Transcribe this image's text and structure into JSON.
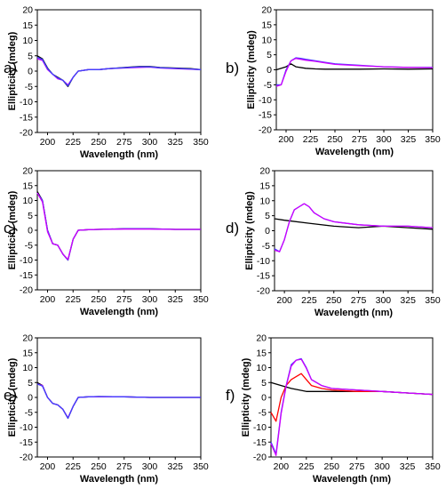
{
  "chart_data": [
    {
      "panel_label": "a)",
      "type": "line",
      "xlabel": "Wavelength (nm)",
      "ylabel": "Ellipticity (mdeg)",
      "xlim": [
        190,
        350
      ],
      "ylim": [
        -20,
        20
      ],
      "xticks": [
        200,
        225,
        250,
        275,
        300,
        325,
        350
      ],
      "yticks": [
        -20,
        -15,
        -10,
        -5,
        0,
        5,
        10,
        15,
        20
      ],
      "grid": false,
      "legend": "none",
      "series": [
        {
          "color": "#000000",
          "x": [
            190,
            195,
            200,
            205,
            210,
            215,
            220,
            225,
            230,
            240,
            250,
            260,
            275,
            290,
            300,
            310,
            325,
            340,
            350
          ],
          "y": [
            5,
            4,
            1,
            -1,
            -2,
            -3,
            -5,
            -2,
            0,
            0.5,
            0.5,
            0.8,
            1.2,
            1.5,
            1.5,
            1.2,
            1,
            0.8,
            0.5
          ]
        },
        {
          "color": "#cc00ff",
          "x": [
            190,
            195,
            200,
            205,
            210,
            215,
            220,
            225,
            230,
            240,
            250,
            260,
            275,
            290,
            300,
            310,
            325,
            340,
            350
          ],
          "y": [
            4,
            3.5,
            0.5,
            -1,
            -2.5,
            -3,
            -4.5,
            -2,
            0,
            0.5,
            0.5,
            0.8,
            1,
            1.2,
            1.3,
            1,
            0.8,
            0.6,
            0.5
          ]
        },
        {
          "color": "#4040ff",
          "x": [
            190,
            195,
            200,
            205,
            210,
            215,
            220,
            225,
            230,
            240,
            250,
            260,
            275,
            290,
            300,
            310,
            325,
            340,
            350
          ],
          "y": [
            4.5,
            3.8,
            0.8,
            -1,
            -2.2,
            -3,
            -4.8,
            -2,
            0,
            0.5,
            0.5,
            0.8,
            1.1,
            1.4,
            1.4,
            1.1,
            0.9,
            0.7,
            0.5
          ]
        }
      ]
    },
    {
      "panel_label": "b)",
      "type": "line",
      "xlabel": "Wavelength (nm)",
      "ylabel": "Ellipticity (mdeg)",
      "xlim": [
        190,
        350
      ],
      "ylim": [
        -20,
        20
      ],
      "xticks": [
        200,
        225,
        250,
        275,
        300,
        325,
        350
      ],
      "yticks": [
        -20,
        -15,
        -10,
        -5,
        0,
        5,
        10,
        15,
        20
      ],
      "grid": false,
      "legend": "none",
      "series": [
        {
          "color": "#000000",
          "x": [
            190,
            200,
            205,
            210,
            220,
            230,
            240,
            250,
            275,
            300,
            325,
            350
          ],
          "y": [
            0,
            1,
            2,
            1,
            0.5,
            0.3,
            0.2,
            0.2,
            0.2,
            0.3,
            0.2,
            0.3
          ]
        },
        {
          "color": "#4040ff",
          "x": [
            190,
            195,
            200,
            205,
            210,
            215,
            220,
            230,
            240,
            250,
            275,
            300,
            325,
            350
          ],
          "y": [
            -5,
            -5,
            0,
            3,
            4,
            3.8,
            3.5,
            3,
            2.5,
            2,
            1.5,
            1,
            0.8,
            0.8
          ]
        },
        {
          "color": "#cc00ff",
          "x": [
            190,
            195,
            200,
            205,
            210,
            215,
            220,
            230,
            240,
            250,
            275,
            300,
            325,
            350
          ],
          "y": [
            -5.5,
            -5,
            -0.5,
            3,
            3.8,
            3.5,
            3.2,
            2.8,
            2.3,
            1.8,
            1.4,
            1,
            0.8,
            0.7
          ]
        }
      ]
    },
    {
      "panel_label": "c)",
      "type": "line",
      "xlabel": "Wavelength (nm)",
      "ylabel": "Ellipticity (mdeg)",
      "xlim": [
        190,
        350
      ],
      "ylim": [
        -20,
        20
      ],
      "xticks": [
        200,
        225,
        250,
        275,
        300,
        325,
        350
      ],
      "yticks": [
        -20,
        -15,
        -10,
        -5,
        0,
        5,
        10,
        15,
        20
      ],
      "grid": false,
      "legend": "none",
      "series": [
        {
          "color": "#000000",
          "x": [
            190,
            195,
            200,
            205,
            210,
            215,
            220,
            225,
            230,
            240,
            250,
            275,
            300,
            325,
            350
          ],
          "y": [
            13,
            10,
            0,
            -4.5,
            -5,
            -8,
            -10,
            -3,
            0,
            0.2,
            0.3,
            0.5,
            0.5,
            0.3,
            0.3
          ]
        },
        {
          "color": "#4040ff",
          "x": [
            190,
            195,
            200,
            205,
            210,
            215,
            220,
            225,
            230,
            240,
            250,
            275,
            300,
            325,
            350
          ],
          "y": [
            12.5,
            10,
            0,
            -4.5,
            -5,
            -8,
            -10,
            -3,
            0,
            0.2,
            0.3,
            0.5,
            0.5,
            0.3,
            0.3
          ]
        },
        {
          "color": "#cc00ff",
          "x": [
            190,
            195,
            200,
            205,
            210,
            215,
            220,
            225,
            230,
            240,
            250,
            275,
            300,
            325,
            350
          ],
          "y": [
            12.5,
            9.5,
            -0.5,
            -4.5,
            -5,
            -8,
            -9.8,
            -3,
            0,
            0.2,
            0.3,
            0.4,
            0.4,
            0.3,
            0.3
          ]
        }
      ]
    },
    {
      "panel_label": "d)",
      "type": "line",
      "xlabel": "Wavelength (nm)",
      "ylabel": "Ellipticity (mdeg)",
      "xlim": [
        190,
        350
      ],
      "ylim": [
        -20,
        20
      ],
      "xticks": [
        200,
        225,
        250,
        275,
        300,
        325,
        350
      ],
      "yticks": [
        -20,
        -15,
        -10,
        -5,
        0,
        5,
        10,
        15,
        20
      ],
      "grid": false,
      "legend": "none",
      "series": [
        {
          "color": "#000000",
          "x": [
            190,
            200,
            225,
            250,
            275,
            300,
            325,
            350
          ],
          "y": [
            4,
            3.5,
            2.5,
            1.5,
            1,
            1.5,
            1,
            0.5
          ]
        },
        {
          "color": "#4040ff",
          "x": [
            190,
            195,
            200,
            205,
            210,
            215,
            220,
            225,
            230,
            240,
            250,
            275,
            300,
            325,
            350
          ],
          "y": [
            -6,
            -7,
            -3,
            3,
            7,
            8,
            9,
            8,
            6,
            4,
            3,
            2,
            1.5,
            1.5,
            1
          ]
        },
        {
          "color": "#cc00ff",
          "x": [
            190,
            195,
            200,
            205,
            210,
            215,
            220,
            225,
            230,
            240,
            250,
            275,
            300,
            325,
            350
          ],
          "y": [
            -6.5,
            -7,
            -3,
            3,
            7,
            8,
            9,
            8,
            6,
            4,
            3,
            2,
            1.5,
            1.5,
            1
          ]
        }
      ]
    },
    {
      "panel_label": "e)",
      "type": "line",
      "xlabel": "Wavelength (nm)",
      "ylabel": "Ellipticity (mdeg)",
      "xlim": [
        190,
        350
      ],
      "ylim": [
        -20,
        20
      ],
      "xticks": [
        200,
        225,
        250,
        275,
        300,
        325,
        350
      ],
      "yticks": [
        -20,
        -15,
        -10,
        -5,
        0,
        5,
        10,
        15,
        20
      ],
      "grid": false,
      "legend": "none",
      "series": [
        {
          "color": "#000000",
          "x": [
            190,
            195,
            200,
            205,
            210,
            215,
            220,
            225,
            230,
            240,
            250,
            275,
            300,
            325,
            350
          ],
          "y": [
            5,
            4,
            0,
            -2,
            -2.5,
            -4,
            -7,
            -3,
            0,
            0.2,
            0.3,
            0.2,
            0,
            0,
            0
          ]
        },
        {
          "color": "#cc00ff",
          "x": [
            190,
            195,
            200,
            205,
            210,
            215,
            220,
            225,
            230,
            240,
            250,
            275,
            300,
            325,
            350
          ],
          "y": [
            4.5,
            4,
            0,
            -2,
            -2.5,
            -4,
            -6.8,
            -3,
            0,
            0.2,
            0.2,
            0.2,
            0,
            0,
            0
          ]
        },
        {
          "color": "#4040ff",
          "x": [
            190,
            195,
            200,
            205,
            210,
            215,
            220,
            225,
            230,
            240,
            250,
            275,
            300,
            325,
            350
          ],
          "y": [
            4.5,
            3.8,
            0,
            -2,
            -2.5,
            -4,
            -7,
            -3,
            0,
            0.2,
            0.3,
            0.2,
            0,
            0,
            0
          ]
        }
      ]
    },
    {
      "panel_label": "f)",
      "type": "line",
      "xlabel": "Wavelength (nm)",
      "ylabel": "Ellipticity (mdeg)",
      "xlim": [
        190,
        350
      ],
      "ylim": [
        -20,
        20
      ],
      "xticks": [
        200,
        225,
        250,
        275,
        300,
        325,
        350
      ],
      "yticks": [
        -20,
        -15,
        -10,
        -5,
        0,
        5,
        10,
        15,
        20
      ],
      "grid": false,
      "legend": "none",
      "series": [
        {
          "color": "#000000",
          "x": [
            190,
            200,
            210,
            225,
            250,
            275,
            300,
            325,
            350
          ],
          "y": [
            5,
            4,
            3,
            2,
            2,
            2,
            2,
            1.5,
            1
          ]
        },
        {
          "color": "#ff0000",
          "x": [
            190,
            195,
            200,
            205,
            210,
            215,
            220,
            225,
            230,
            240,
            250,
            275,
            300,
            325,
            350
          ],
          "y": [
            -5,
            -8,
            0,
            4,
            6,
            7,
            8,
            6,
            4,
            3,
            2.5,
            2,
            2,
            1.5,
            1
          ]
        },
        {
          "color": "#4040ff",
          "x": [
            190,
            195,
            200,
            205,
            210,
            215,
            220,
            225,
            230,
            240,
            250,
            275,
            300,
            325,
            350
          ],
          "y": [
            -15,
            -19,
            -5,
            4,
            11,
            12.5,
            13,
            10,
            6,
            4,
            3,
            2.5,
            2,
            1.5,
            1
          ]
        },
        {
          "color": "#cc00ff",
          "x": [
            190,
            195,
            200,
            205,
            210,
            215,
            220,
            225,
            230,
            240,
            250,
            275,
            300,
            325,
            350
          ],
          "y": [
            -15.5,
            -19.5,
            -5.5,
            3.8,
            10.5,
            12.5,
            12.8,
            9.8,
            6,
            4,
            3,
            2.5,
            2,
            1.5,
            1
          ]
        }
      ]
    }
  ]
}
